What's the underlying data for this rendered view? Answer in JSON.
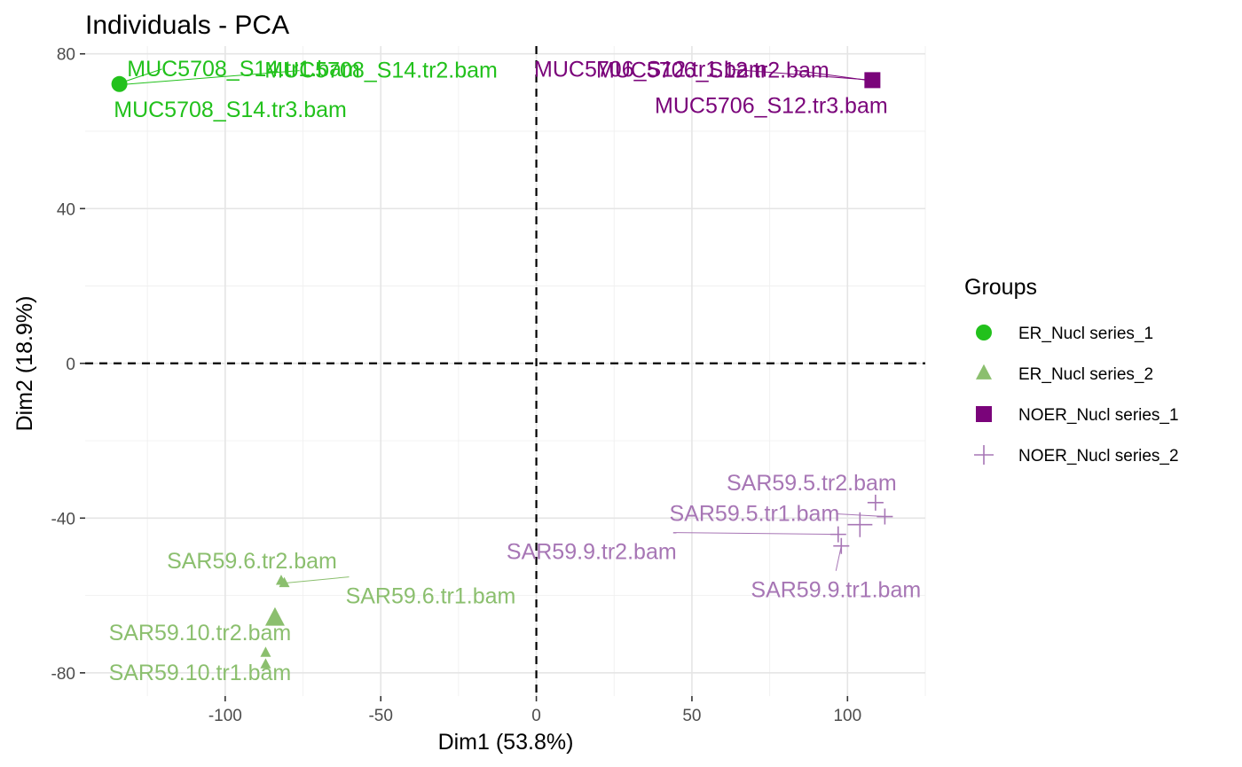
{
  "chart_data": {
    "type": "scatter",
    "title": "Individuals - PCA",
    "xlabel": "Dim1 (53.8%)",
    "ylabel": "Dim2 (18.9%)",
    "xlim": [
      -145,
      125
    ],
    "ylim": [
      -86,
      82
    ],
    "xticks": [
      -100,
      -50,
      0,
      50,
      100
    ],
    "yticks": [
      -80,
      -40,
      0,
      40,
      80
    ],
    "grid": true,
    "reference_lines": {
      "x": 0,
      "y": 0,
      "style": "dashed"
    },
    "legend": {
      "title": "Groups",
      "position": "right"
    },
    "series": [
      {
        "name": "ER_Nucl series_1",
        "color": "#22c11c",
        "marker": "circle",
        "points": [
          {
            "x": -134,
            "y": 72.4,
            "label": "MUC5708_S14.tr1.bam"
          },
          {
            "x": -134,
            "y": 72.0,
            "label": "MUC5708_S14.tr2.bam"
          },
          {
            "x": -134,
            "y": 72.2,
            "label": "MUC5708_S14.tr3.bam"
          }
        ],
        "centroid": {
          "x": -134,
          "y": 72.2
        }
      },
      {
        "name": "ER_Nucl series_2",
        "color": "#8bbf6e",
        "marker": "triangle",
        "points": [
          {
            "x": -81,
            "y": -56.8,
            "label": "SAR59.6.tr1.bam"
          },
          {
            "x": -82,
            "y": -56.2,
            "label": "SAR59.6.tr2.bam"
          },
          {
            "x": -87,
            "y": -77.8,
            "label": "SAR59.10.tr1.bam"
          },
          {
            "x": -87,
            "y": -74.8,
            "label": "SAR59.10.tr2.bam"
          }
        ],
        "centroid": {
          "x": -84,
          "y": -65.9
        }
      },
      {
        "name": "NOER_Nucl series_1",
        "color": "#7a047a",
        "marker": "square",
        "points": [
          {
            "x": 108,
            "y": 73.2,
            "label": "MUC5706_S12.tr1.bam"
          },
          {
            "x": 108,
            "y": 73.0,
            "label": "MUC5706_S12.tr2.bam"
          },
          {
            "x": 108,
            "y": 73.4,
            "label": "MUC5706_S12.tr3.bam"
          }
        ],
        "centroid": {
          "x": 108,
          "y": 73.2
        }
      },
      {
        "name": "NOER_Nucl series_2",
        "color": "#a776b5",
        "marker": "cross",
        "points": [
          {
            "x": 112,
            "y": -39.6,
            "label": "SAR59.5.tr1.bam"
          },
          {
            "x": 109,
            "y": -36.0,
            "label": "SAR59.5.tr2.bam"
          },
          {
            "x": 98,
            "y": -47.2,
            "label": "SAR59.9.tr1.bam"
          },
          {
            "x": 97,
            "y": -44.2,
            "label": "SAR59.9.tr2.bam"
          }
        ],
        "centroid": {
          "x": 104,
          "y": -41.7
        }
      }
    ]
  }
}
